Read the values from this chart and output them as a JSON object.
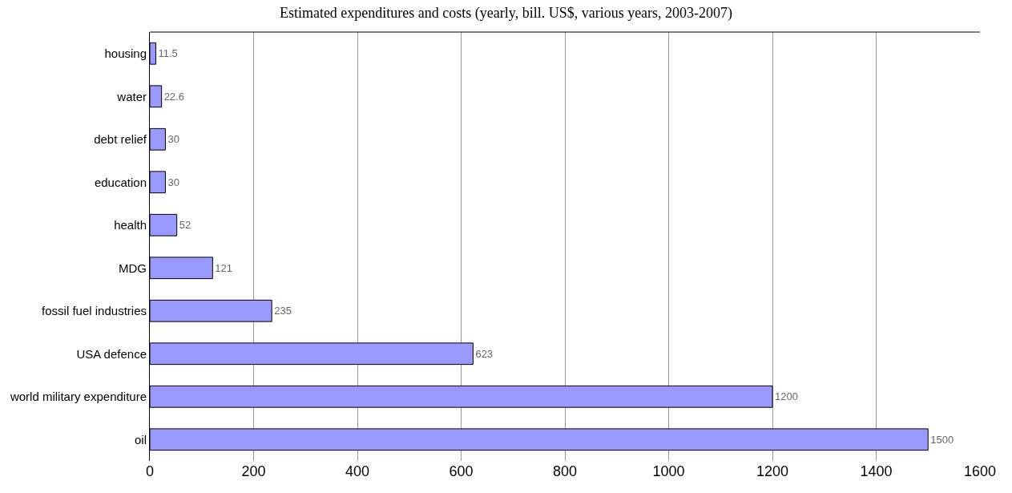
{
  "chart_data": {
    "type": "bar",
    "orientation": "horizontal",
    "title": "Estimated expenditures and costs (yearly, bill. US$, various years, 2003-2007)",
    "categories": [
      "housing",
      "water",
      "debt relief",
      "education",
      "health",
      "MDG",
      "fossil fuel industries",
      "USA defence",
      "world military expenditure",
      "oil"
    ],
    "values": [
      11.5,
      22.6,
      30,
      30,
      52,
      121,
      235,
      623,
      1200,
      1500
    ],
    "value_labels": [
      "11.5",
      "22.6",
      "30",
      "30",
      "52",
      "121",
      "235",
      "623",
      "1200",
      "1500"
    ],
    "color": "#9999ff",
    "xlim": [
      0,
      1600
    ],
    "xticks": [
      0,
      200,
      400,
      600,
      800,
      1000,
      1200,
      1400,
      1600
    ],
    "grid": "x"
  }
}
